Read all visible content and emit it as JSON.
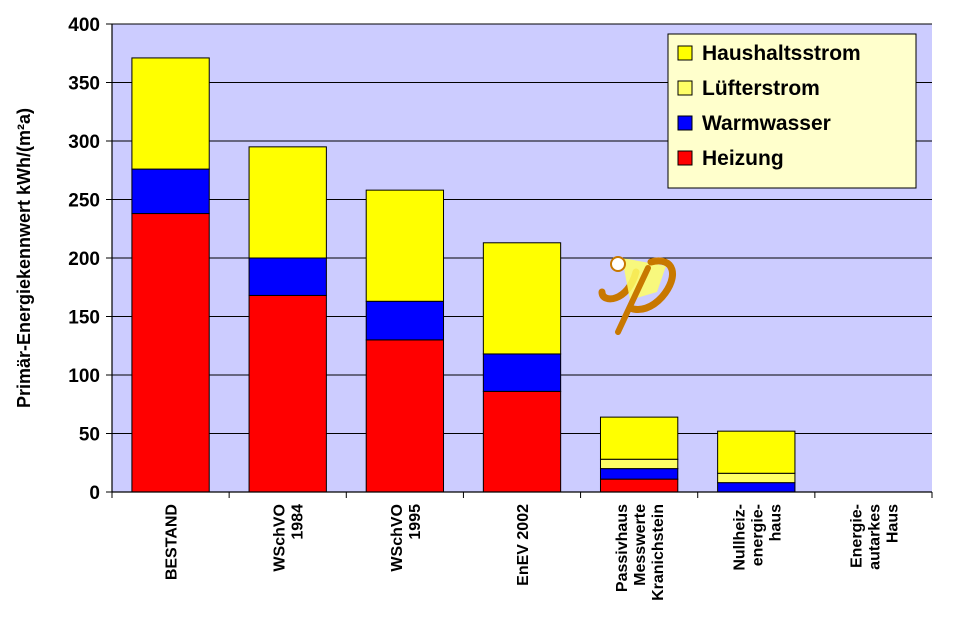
{
  "chart_data": {
    "type": "bar",
    "stacked": true,
    "ylabel": "Primär-Energiekennwert  kWh/(m²a)",
    "ylim": [
      0,
      400
    ],
    "yticks": [
      0,
      50,
      100,
      150,
      200,
      250,
      300,
      350,
      400
    ],
    "grid": true,
    "legend_position": "top-right",
    "categories": [
      [
        "BESTAND"
      ],
      [
        "WSchVO",
        "1984"
      ],
      [
        "WSchVO",
        "1995"
      ],
      [
        "EnEV 2002"
      ],
      [
        "Passivhaus",
        "Messwerte",
        "Kranichstein"
      ],
      [
        "Nullheiz-",
        "energie-",
        "haus"
      ],
      [
        "Energie-",
        "autarkes",
        "Haus"
      ]
    ],
    "series": [
      {
        "name": "Heizung",
        "color": "#ff0000",
        "values": [
          238,
          168,
          130,
          86,
          11,
          0,
          0
        ]
      },
      {
        "name": "Warmwasser",
        "color": "#0000ff",
        "values": [
          38,
          32,
          33,
          32,
          9,
          8,
          0
        ]
      },
      {
        "name": "Lüfterstrom",
        "color": "#ffff66",
        "values": [
          0,
          0,
          0,
          0,
          8,
          8,
          0
        ]
      },
      {
        "name": "Haushaltsstrom",
        "color": "#ffff00",
        "values": [
          95,
          95,
          95,
          95,
          36,
          36,
          0
        ]
      }
    ],
    "legend_order": [
      "Haushaltsstrom",
      "Lüfterstrom",
      "Warmwasser",
      "Heizung"
    ],
    "plot_background": "#ccccff"
  }
}
